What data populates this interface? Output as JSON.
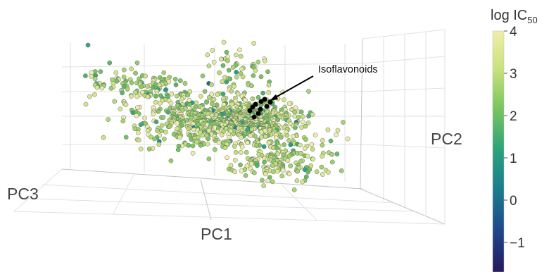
{
  "chart_data": {
    "type": "scatter",
    "projection": "3d",
    "axes": {
      "x": "PC1",
      "y": "PC2",
      "z": "PC3"
    },
    "colorbar": {
      "title_main": "log IC",
      "title_sub": "50",
      "range": [
        -1.7,
        4
      ],
      "ticks": [
        {
          "value": 4,
          "label": "4"
        },
        {
          "value": 3,
          "label": "3"
        },
        {
          "value": 2,
          "label": "2"
        },
        {
          "value": 1,
          "label": "1"
        },
        {
          "value": 0,
          "label": "0"
        },
        {
          "value": -1,
          "label": "−1"
        }
      ],
      "colorscale": [
        "#26185f",
        "#1d4a8c",
        "#1b7b8e",
        "#2aa17c",
        "#7ac55e",
        "#c8e27e",
        "#f0eeaa"
      ]
    },
    "annotation": {
      "text": "Isoflavonoids",
      "highlight_color": "#000000"
    },
    "clusters": [
      {
        "cx": 355,
        "cy": 170,
        "sx": 70,
        "sy": 30,
        "n": 520
      },
      {
        "cx": 270,
        "cy": 175,
        "sx": 70,
        "sy": 30,
        "n": 280
      },
      {
        "cx": 400,
        "cy": 230,
        "sx": 60,
        "sy": 22,
        "n": 160
      },
      {
        "cx": 220,
        "cy": 130,
        "sx": 50,
        "sy": 22,
        "n": 80
      },
      {
        "cx": 170,
        "cy": 118,
        "sx": 45,
        "sy": 16,
        "n": 45
      },
      {
        "cx": 340,
        "cy": 95,
        "sx": 40,
        "sy": 22,
        "n": 50
      }
    ],
    "highlight_points": [
      [
        363,
        148
      ],
      [
        371,
        144
      ],
      [
        379,
        151
      ],
      [
        355,
        157
      ],
      [
        367,
        161
      ],
      [
        384,
        145
      ],
      [
        376,
        141
      ],
      [
        359,
        152
      ],
      [
        370,
        155
      ],
      [
        361,
        166
      ]
    ],
    "value_distribution": {
      "mean": 2.9,
      "sd": 0.85
    },
    "seed": 7
  }
}
